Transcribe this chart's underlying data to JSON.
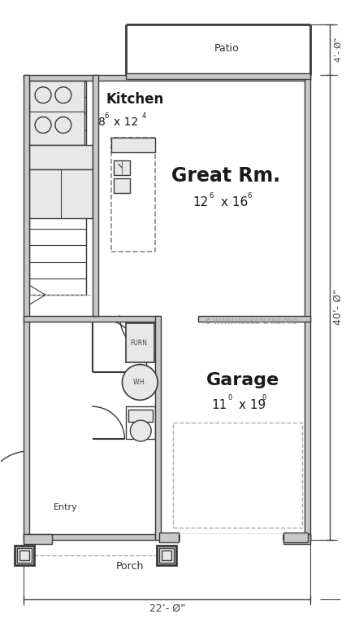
{
  "bg_color": "#ffffff",
  "wall_color": "#3a3a3a",
  "fig_w": 4.26,
  "fig_h": 7.7,
  "title_patio": "Patio",
  "title_kitchen": "Kitchen",
  "title_great": "Great Rm.",
  "title_garage": "Garage",
  "title_entry": "Entry",
  "title_porch": "Porch",
  "dim_bottom": "22’- Ø”",
  "dim_right_top": "4’- Ø”",
  "dim_right_mid": "40’- Ø”",
  "watermark": "© WWW.HOUSEPLANS.PRO",
  "gray_fill": "#c8c8c8",
  "light_gray": "#e8e8e8",
  "dashed_color": "#aaaaaa",
  "dim_color": "#444444"
}
